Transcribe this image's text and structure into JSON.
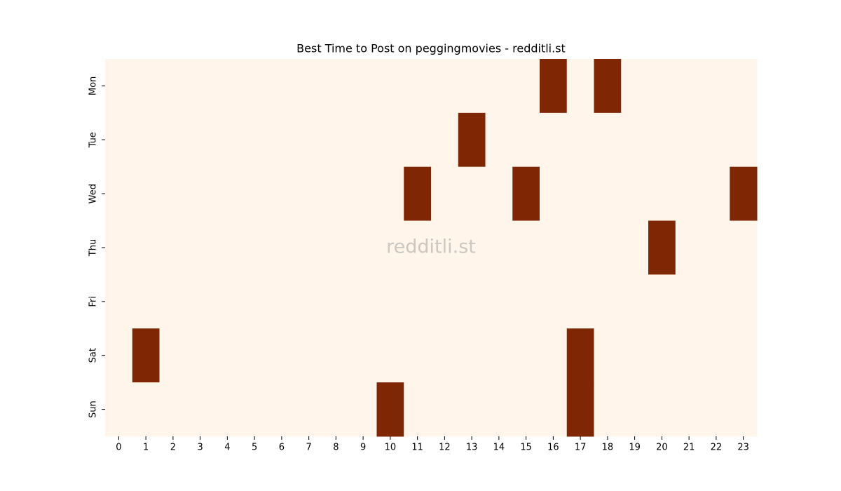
{
  "chart_data": {
    "type": "heatmap",
    "title": "Best Time to Post on peggingmovies - redditli.st",
    "watermark": "redditli.st",
    "x_categories": [
      0,
      1,
      2,
      3,
      4,
      5,
      6,
      7,
      8,
      9,
      10,
      11,
      12,
      13,
      14,
      15,
      16,
      17,
      18,
      19,
      20,
      21,
      22,
      23
    ],
    "y_categories": [
      "Mon",
      "Tue",
      "Wed",
      "Thu",
      "Fri",
      "Sat",
      "Sun"
    ],
    "values": [
      [
        0,
        0,
        0,
        0,
        0,
        0,
        0,
        0,
        0,
        0,
        0,
        0,
        0,
        0,
        0,
        0,
        1,
        0,
        1,
        0,
        0,
        0,
        0,
        0
      ],
      [
        0,
        0,
        0,
        0,
        0,
        0,
        0,
        0,
        0,
        0,
        0,
        0,
        0,
        1,
        0,
        0,
        0,
        0,
        0,
        0,
        0,
        0,
        0,
        0
      ],
      [
        0,
        0,
        0,
        0,
        0,
        0,
        0,
        0,
        0,
        0,
        0,
        1,
        0,
        0,
        0,
        1,
        0,
        0,
        0,
        0,
        0,
        0,
        0,
        1
      ],
      [
        0,
        0,
        0,
        0,
        0,
        0,
        0,
        0,
        0,
        0,
        0,
        0,
        0,
        0,
        0,
        0,
        0,
        0,
        0,
        0,
        1,
        0,
        0,
        0
      ],
      [
        0,
        0,
        0,
        0,
        0,
        0,
        0,
        0,
        0,
        0,
        0,
        0,
        0,
        0,
        0,
        0,
        0,
        0,
        0,
        0,
        0,
        0,
        0,
        0
      ],
      [
        0,
        1,
        0,
        0,
        0,
        0,
        0,
        0,
        0,
        0,
        0,
        0,
        0,
        0,
        0,
        0,
        0,
        1,
        0,
        0,
        0,
        0,
        0,
        0
      ],
      [
        0,
        0,
        0,
        0,
        0,
        0,
        0,
        0,
        0,
        0,
        1,
        0,
        0,
        0,
        0,
        0,
        0,
        1,
        0,
        0,
        0,
        0,
        0,
        0
      ]
    ],
    "colors": [
      "#fff5eb",
      "#7f2704"
    ]
  }
}
